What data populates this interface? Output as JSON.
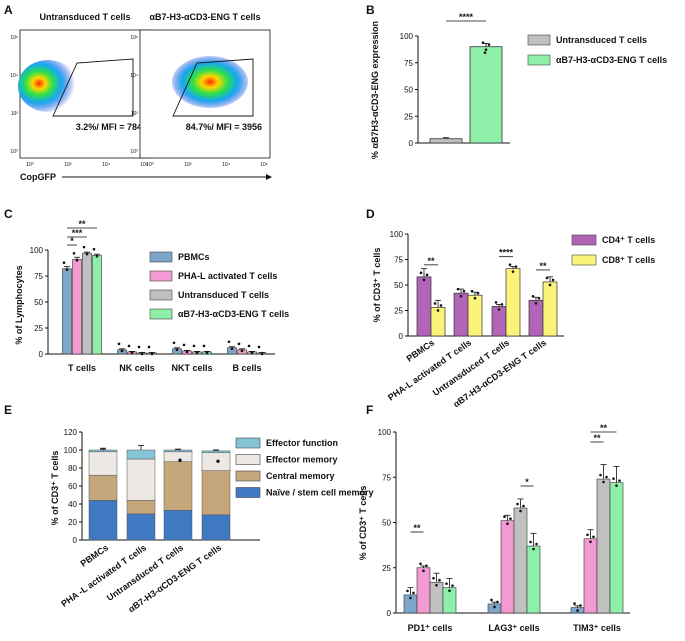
{
  "colors": {
    "pbmc": "#7ea6c8",
    "pha": "#f39ad2",
    "untrans": "#c0c0c0",
    "eng": "#8ef0a8",
    "cd4": "#b164b8",
    "cd8": "#fbf27a",
    "effector_function": "#87c3d6",
    "effector_memory": "#ede8e3",
    "central_memory": "#c6a77b",
    "naive": "#3f79c2"
  },
  "chart_data": [
    {
      "panel": "A",
      "type": "scatter",
      "subtype": "flow-cytometry",
      "xlabel": "CopGFP",
      "xticks": [
        "10⁰",
        "10²",
        "10⁴",
        "10⁶"
      ],
      "yticks": [
        "10⁰",
        "10²",
        "10⁴",
        "10⁶"
      ],
      "plots": [
        {
          "title": "Untransduced T cells",
          "gate": "3.2%/ MFI = 784"
        },
        {
          "title": "αB7-H3-αCD3-ENG T cells",
          "gate": "84.7%/ MFI = 3956"
        }
      ]
    },
    {
      "panel": "B",
      "type": "bar",
      "ylabel": "% αB7H3-αCD3-ENG expression",
      "ylim": [
        0,
        100
      ],
      "yticks": [
        "0",
        "25",
        "50",
        "75",
        "100"
      ],
      "significance": "****",
      "series": [
        {
          "name": "Untransduced T cells",
          "value": 4,
          "err": 1
        },
        {
          "name": "αB7-H3-αCD3-ENG T cells",
          "value": 90,
          "err": 3
        }
      ]
    },
    {
      "panel": "C",
      "type": "bar",
      "ylabel": "% of Lymphocytes",
      "ylim": [
        0,
        100
      ],
      "yticks": [
        "0",
        "25",
        "50",
        "75",
        "100"
      ],
      "categories": [
        "T cells",
        "NK cells",
        "NKT cells",
        "B cells"
      ],
      "series": [
        {
          "name": "PBMCs",
          "values": [
            82,
            4,
            5,
            6
          ],
          "err": [
            2,
            1,
            1,
            1
          ]
        },
        {
          "name": "PHA-L activated T cells",
          "values": [
            91,
            2,
            3,
            4
          ],
          "err": [
            2,
            0.5,
            0.5,
            1
          ]
        },
        {
          "name": "Untransduced T cells",
          "values": [
            97,
            1,
            2,
            2
          ],
          "err": [
            1,
            0.5,
            0.5,
            0.5
          ]
        },
        {
          "name": "αB7-H3-αCD3-ENG T cells",
          "values": [
            95,
            1,
            2,
            1
          ],
          "err": [
            1,
            0.5,
            0.5,
            0.5
          ]
        }
      ],
      "significance": [
        "*",
        "***",
        "**"
      ]
    },
    {
      "panel": "D",
      "type": "bar",
      "ylabel": "% of CD3⁺ T cells",
      "ylim": [
        0,
        100
      ],
      "yticks": [
        "0",
        "25",
        "50",
        "75",
        "100"
      ],
      "categories": [
        "PBMCs",
        "PHA-L activated T cells",
        "Untransduced T cells",
        "αB7-H3-αCD3-ENG T cells"
      ],
      "series": [
        {
          "name": "CD4⁺ T cells",
          "values": [
            58,
            42,
            29,
            35
          ],
          "err": [
            8,
            4,
            2,
            3
          ]
        },
        {
          "name": "CD8⁺ T cells",
          "values": [
            28,
            40,
            66,
            53
          ],
          "err": [
            7,
            3,
            2,
            5
          ]
        }
      ],
      "significance": [
        "**",
        "",
        "****",
        "**"
      ]
    },
    {
      "panel": "E",
      "type": "bar",
      "subtype": "stacked",
      "ylabel": "% of CD3⁺ T cells",
      "ylim": [
        0,
        120
      ],
      "yticks": [
        "0",
        "20",
        "40",
        "60",
        "80",
        "100",
        "120"
      ],
      "categories": [
        "PBMCs",
        "PHA -L activated T cells",
        "Untransduced T cells",
        "αB7-H3-αCD3-ENG T cells"
      ],
      "series": [
        {
          "name": "Naïve / stem cell memory",
          "values": [
            44,
            29,
            33,
            28
          ],
          "err": [
            10,
            6,
            5,
            4
          ]
        },
        {
          "name": "Central memory",
          "values": [
            28,
            15,
            54,
            49
          ],
          "err": [
            6,
            8,
            5,
            6
          ]
        },
        {
          "name": "Effector memory",
          "values": [
            26,
            46,
            11,
            20
          ],
          "err": [
            3,
            5,
            2,
            3
          ]
        },
        {
          "name": "Effector function",
          "values": [
            2,
            10,
            2,
            2
          ],
          "err": [
            2,
            5,
            1,
            1
          ]
        }
      ],
      "marks": [
        "",
        "",
        "●",
        "●"
      ]
    },
    {
      "panel": "F",
      "type": "bar",
      "ylabel": "% of CD3⁺ T cells",
      "ylim": [
        0,
        100
      ],
      "yticks": [
        "0",
        "25",
        "50",
        "75",
        "100"
      ],
      "categories": [
        "PD1⁺ cells",
        "LAG3⁺ cells",
        "TIM3⁺ cells"
      ],
      "series": [
        {
          "name": "PBMCs",
          "values": [
            10,
            5,
            3
          ],
          "err": [
            4,
            1,
            1
          ]
        },
        {
          "name": "PHA-L activated T cells",
          "values": [
            25,
            51,
            41
          ],
          "err": [
            1,
            3,
            5
          ]
        },
        {
          "name": "Untransduced T cells",
          "values": [
            17,
            58,
            74
          ],
          "err": [
            5,
            5,
            8
          ]
        },
        {
          "name": "αB7-H3-αCD3-ENG T cells",
          "values": [
            14,
            37,
            72
          ],
          "err": [
            5,
            7,
            9
          ]
        }
      ],
      "significance": [
        "**",
        "*",
        "**",
        "**"
      ]
    }
  ],
  "panel_labels": [
    "A",
    "B",
    "C",
    "D",
    "E",
    "F"
  ]
}
